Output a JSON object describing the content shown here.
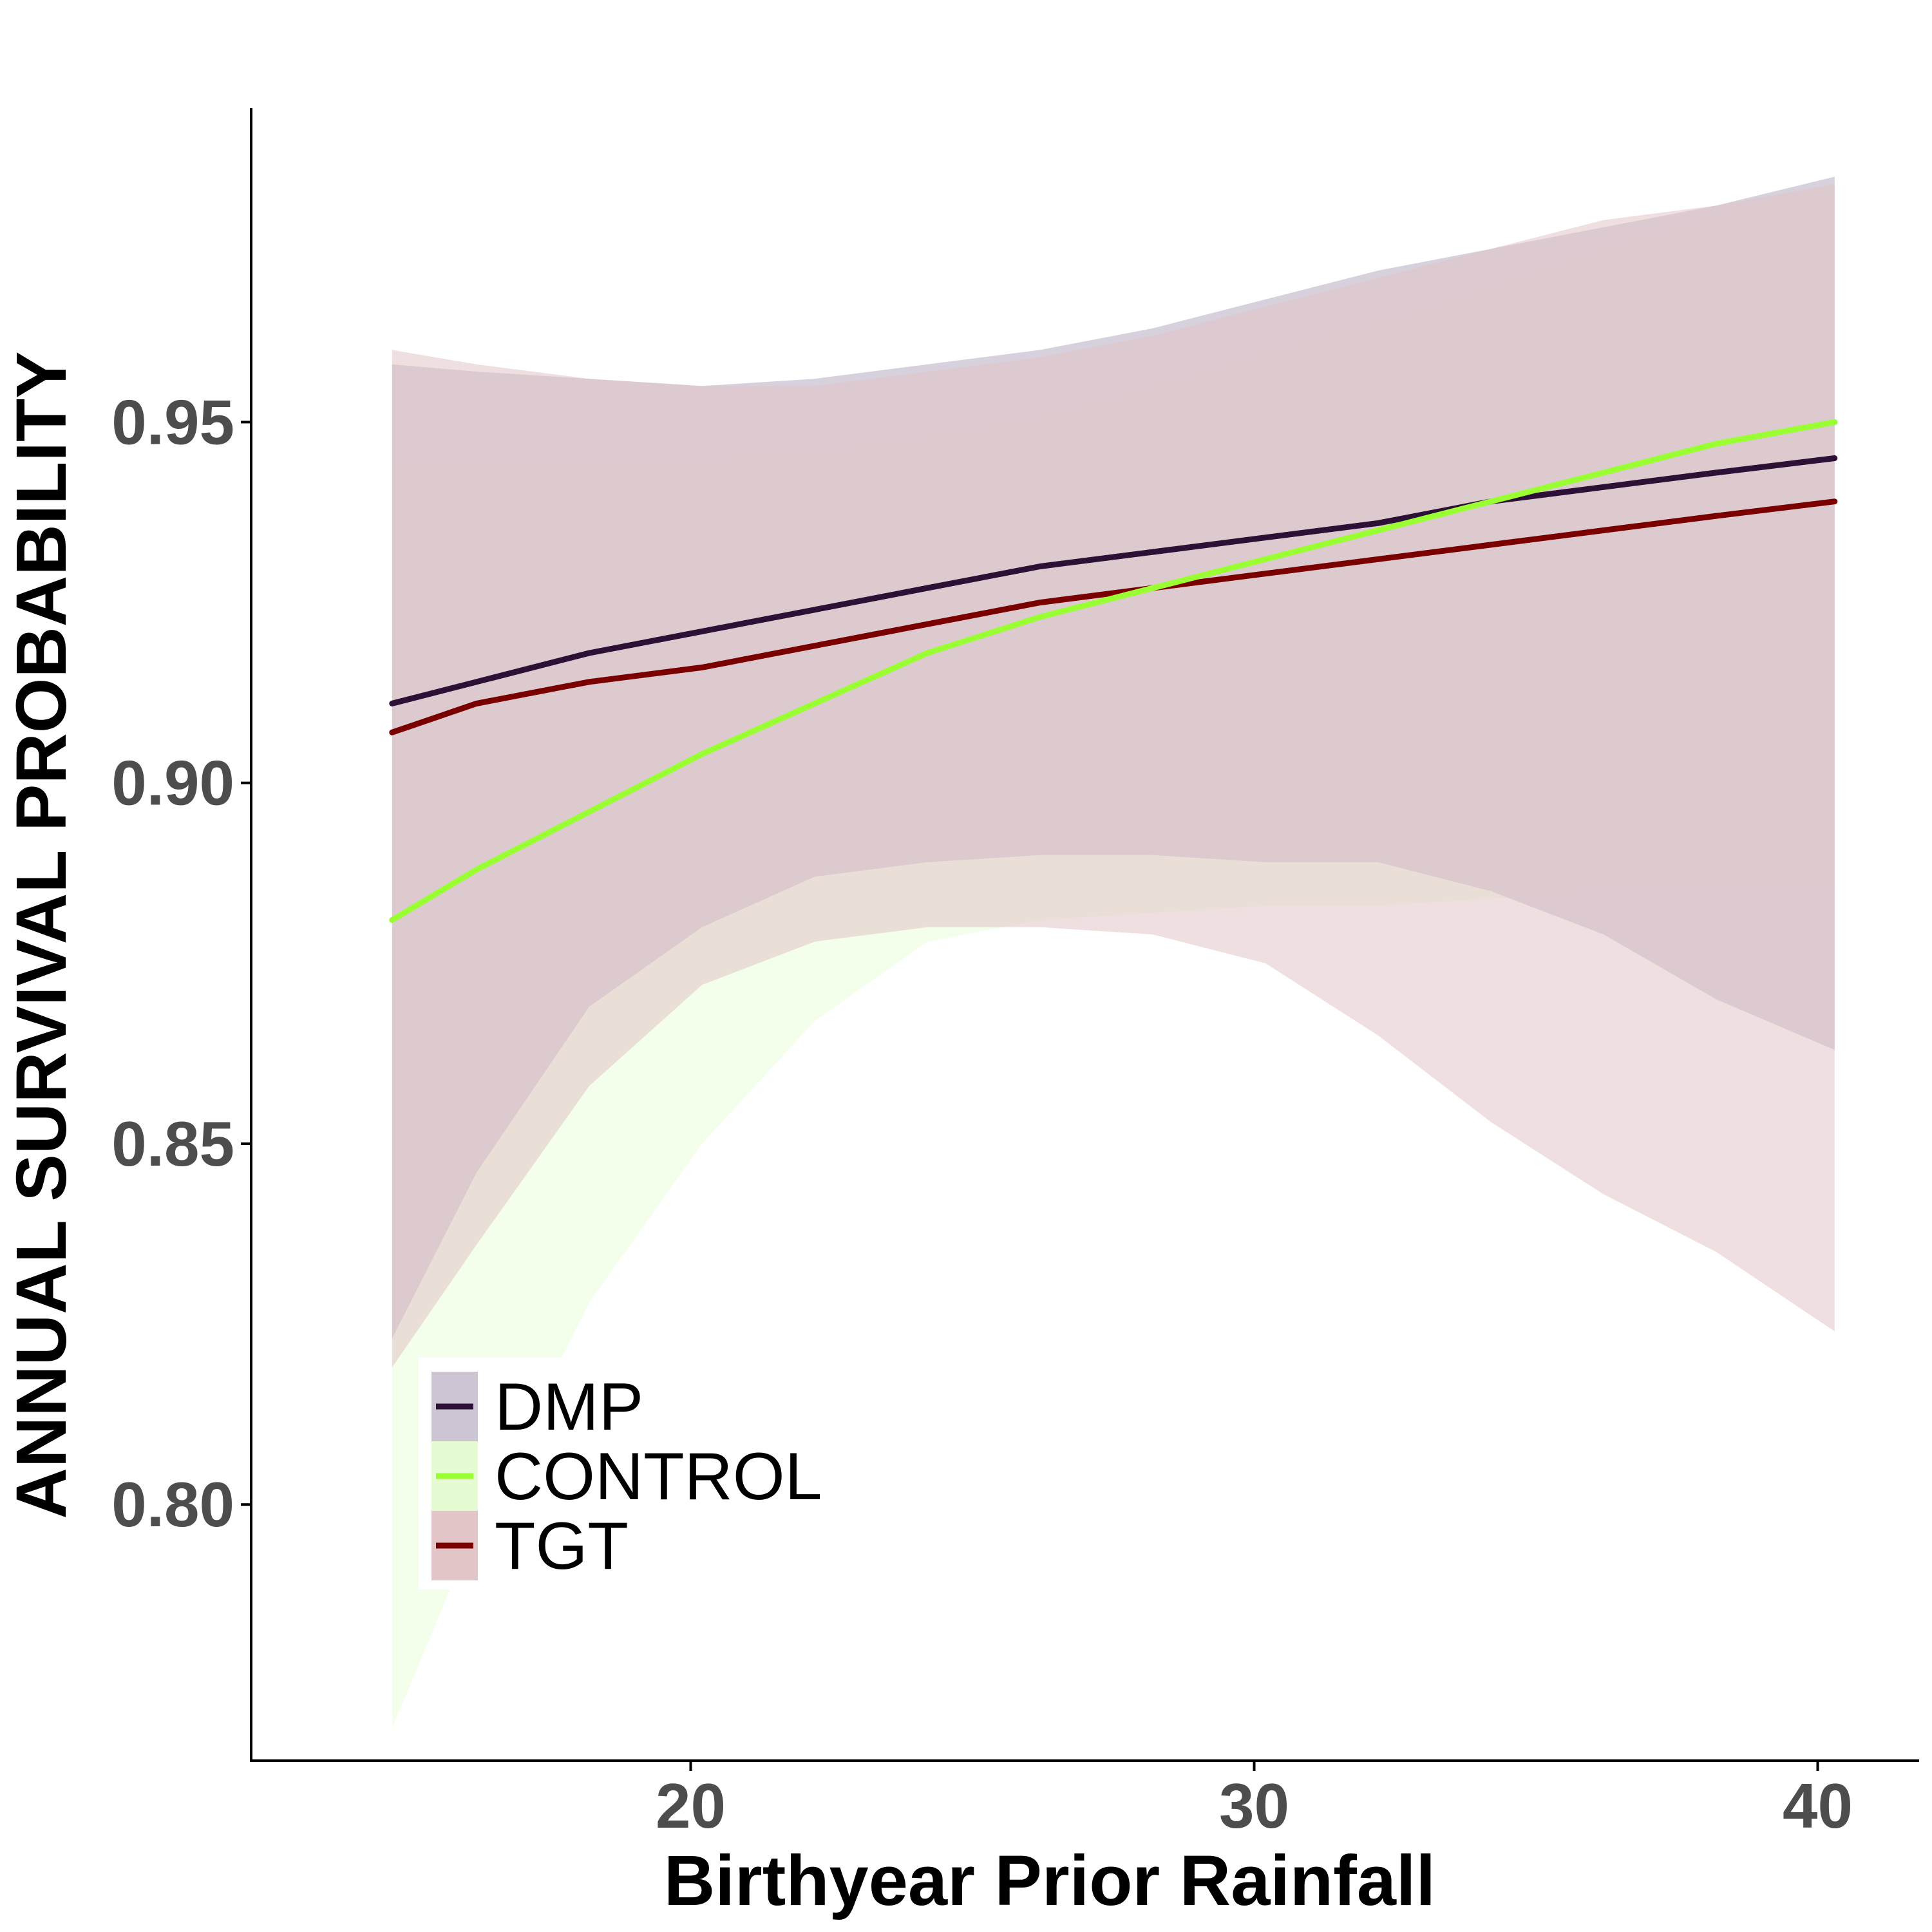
{
  "chart_data": {
    "type": "line",
    "xlabel": "Birthyear Prior Rainfall",
    "ylabel": "ANNUAL SURVIVAL PROBABILITY",
    "xlim": [
      12.2,
      41.8
    ],
    "ylim": [
      0.7645,
      0.9935
    ],
    "xticks": [
      20,
      30,
      40
    ],
    "yticks": [
      0.8,
      0.85,
      0.9,
      0.95
    ],
    "xtick_labels": [
      "20",
      "30",
      "40"
    ],
    "ytick_labels": [
      "0.80",
      "0.85",
      "0.90",
      "0.95"
    ],
    "grid": false,
    "legend_position": "bottom-left",
    "x": [
      14.7,
      16.2,
      18.2,
      20.2,
      22.2,
      24.2,
      26.2,
      28.2,
      30.2,
      32.2,
      34.2,
      36.2,
      38.2,
      40.3
    ],
    "series": [
      {
        "name": "DMP",
        "color": "#2d1035",
        "ribbon_color": "#cdc5d4",
        "mean": [
          0.911,
          0.914,
          0.918,
          0.921,
          0.924,
          0.927,
          0.93,
          0.932,
          0.934,
          0.936,
          0.939,
          0.941,
          0.943,
          0.945
        ],
        "lower": [
          0.823,
          0.846,
          0.869,
          0.88,
          0.887,
          0.889,
          0.89,
          0.89,
          0.889,
          0.889,
          0.885,
          0.879,
          0.87,
          0.863
        ],
        "upper": [
          0.958,
          0.957,
          0.956,
          0.955,
          0.956,
          0.958,
          0.96,
          0.963,
          0.967,
          0.971,
          0.974,
          0.977,
          0.98,
          0.984
        ]
      },
      {
        "name": "CONTROL",
        "color": "#99ff33",
        "ribbon_color": "#e5fcd3",
        "mean": [
          0.881,
          0.888,
          0.896,
          0.904,
          0.911,
          0.918,
          0.923,
          0.927,
          0.931,
          0.935,
          0.939,
          0.943,
          0.947,
          0.95
        ],
        "lower": [
          0.769,
          0.797,
          0.828,
          0.85,
          0.867,
          0.878,
          0.881,
          0.882,
          0.883,
          0.883,
          0.884,
          0.885,
          0.886,
          0.886
        ],
        "upper": [
          0.945,
          0.945,
          0.945,
          0.945,
          0.946,
          0.948,
          0.951,
          0.955,
          0.96,
          0.964,
          0.969,
          0.974,
          0.979,
          0.983
        ]
      },
      {
        "name": "TGT",
        "color": "#7a0000",
        "ribbon_color": "#e2c5c7",
        "mean": [
          0.907,
          0.911,
          0.914,
          0.916,
          0.919,
          0.922,
          0.925,
          0.927,
          0.929,
          0.931,
          0.933,
          0.935,
          0.937,
          0.939
        ],
        "lower": [
          0.819,
          0.836,
          0.858,
          0.872,
          0.878,
          0.88,
          0.88,
          0.879,
          0.875,
          0.865,
          0.853,
          0.843,
          0.835,
          0.824
        ],
        "upper": [
          0.96,
          0.958,
          0.956,
          0.955,
          0.955,
          0.957,
          0.959,
          0.962,
          0.966,
          0.97,
          0.974,
          0.978,
          0.98,
          0.983
        ]
      }
    ]
  }
}
